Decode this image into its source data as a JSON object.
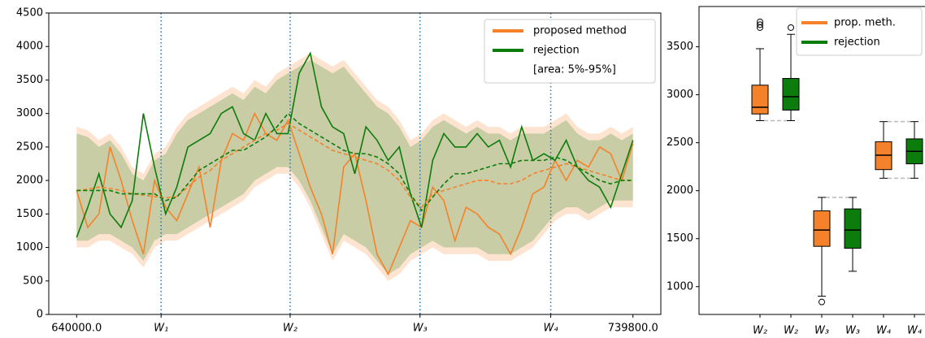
{
  "chart_data": [
    {
      "type": "line-band",
      "x": [
        640000,
        641996,
        643992,
        645988,
        647984,
        649980,
        651976,
        653972,
        655968,
        657964,
        659960,
        661956,
        663952,
        665948,
        667944,
        669940,
        671936,
        673932,
        675928,
        677924,
        679920,
        681916,
        683912,
        685908,
        687904,
        689900,
        691896,
        693892,
        695888,
        697884,
        699880,
        701876,
        703872,
        705868,
        707864,
        709860,
        711856,
        713852,
        715848,
        717844,
        719840,
        721836,
        723832,
        725828,
        727824,
        729820,
        731816,
        733812,
        735808,
        737804,
        739800
      ],
      "xlim": [
        635000,
        744800
      ],
      "xticks": [
        {
          "value": 640000,
          "label": "640000.0"
        },
        {
          "value": 655150,
          "label": "W₁"
        },
        {
          "value": 678300,
          "label": "W₂"
        },
        {
          "value": 701600,
          "label": "W₃"
        },
        {
          "value": 725050,
          "label": "W₄"
        },
        {
          "value": 739800,
          "label": "739800.0"
        }
      ],
      "vline_color": "#1f77b4",
      "ylim": [
        0,
        4500
      ],
      "yticks": [
        0,
        500,
        1000,
        1500,
        2000,
        2500,
        3000,
        3500,
        4000,
        4500
      ],
      "legend_note": "[area: 5%-95%]",
      "legend_position": "upper right",
      "series": [
        {
          "name": "proposed method",
          "color": "#f5822a",
          "values": [
            1850,
            1300,
            1500,
            2500,
            2000,
            1400,
            900,
            2000,
            1600,
            1400,
            1800,
            2200,
            1300,
            2300,
            2700,
            2600,
            3000,
            2700,
            2600,
            2900,
            2400,
            1900,
            1500,
            900,
            2200,
            2400,
            1700,
            900,
            600,
            1000,
            1400,
            1300,
            1900,
            1700,
            1100,
            1600,
            1500,
            1300,
            1200,
            900,
            1300,
            1800,
            1900,
            2300,
            2000,
            2300,
            2200,
            2500,
            2400,
            2000,
            2550
          ],
          "mean": [
            1850,
            1870,
            1900,
            1880,
            1850,
            1800,
            1780,
            1760,
            1740,
            1760,
            1900,
            2050,
            2150,
            2300,
            2400,
            2500,
            2600,
            2700,
            2750,
            2850,
            2750,
            2650,
            2550,
            2450,
            2400,
            2350,
            2300,
            2250,
            2150,
            2000,
            1750,
            1600,
            1800,
            1850,
            1900,
            1950,
            2000,
            2000,
            1950,
            1950,
            2000,
            2100,
            2150,
            2200,
            2250,
            2200,
            2150,
            2100,
            2050,
            2000,
            2000
          ],
          "upper": [
            2800,
            2750,
            2600,
            2700,
            2500,
            2200,
            2100,
            2400,
            2500,
            2800,
            3000,
            3100,
            3200,
            3300,
            3400,
            3300,
            3500,
            3400,
            3600,
            3700,
            3800,
            3900,
            3800,
            3700,
            3800,
            3600,
            3400,
            3200,
            3100,
            2900,
            2600,
            2700,
            2900,
            3000,
            2900,
            2800,
            2900,
            2800,
            2800,
            2700,
            2800,
            2800,
            2800,
            2900,
            3000,
            2800,
            2700,
            2700,
            2800,
            2700,
            2800
          ],
          "lower": [
            1000,
            1000,
            1100,
            1100,
            1000,
            900,
            700,
            1000,
            1100,
            1100,
            1200,
            1300,
            1400,
            1500,
            1600,
            1700,
            1900,
            2000,
            2100,
            2100,
            1900,
            1600,
            1200,
            800,
            1100,
            1000,
            900,
            700,
            500,
            600,
            800,
            900,
            1000,
            900,
            900,
            900,
            900,
            800,
            800,
            800,
            900,
            1000,
            1200,
            1400,
            1500,
            1500,
            1400,
            1500,
            1600,
            1600,
            1600
          ]
        },
        {
          "name": "rejection",
          "color": "#0c7c0c",
          "values": [
            1150,
            1600,
            2100,
            1500,
            1300,
            1700,
            3000,
            2200,
            1500,
            1900,
            2500,
            2600,
            2700,
            3000,
            3100,
            2700,
            2600,
            3000,
            2700,
            2700,
            3600,
            3900,
            3100,
            2800,
            2700,
            2100,
            2800,
            2600,
            2300,
            2500,
            1800,
            1300,
            2300,
            2700,
            2500,
            2500,
            2700,
            2500,
            2600,
            2200,
            2800,
            2300,
            2400,
            2300,
            2600,
            2200,
            2000,
            1900,
            1600,
            2100,
            2600
          ],
          "mean": [
            1850,
            1850,
            1850,
            1850,
            1800,
            1800,
            1800,
            1800,
            1700,
            1750,
            1950,
            2150,
            2250,
            2350,
            2450,
            2450,
            2550,
            2650,
            2800,
            3000,
            2850,
            2750,
            2650,
            2550,
            2450,
            2400,
            2400,
            2350,
            2250,
            2100,
            1800,
            1550,
            1750,
            1950,
            2100,
            2100,
            2150,
            2200,
            2250,
            2250,
            2300,
            2300,
            2300,
            2350,
            2300,
            2200,
            2100,
            2000,
            1950,
            2000,
            2000
          ],
          "upper": [
            2700,
            2650,
            2500,
            2600,
            2400,
            2100,
            2000,
            2300,
            2400,
            2700,
            2900,
            3000,
            3100,
            3200,
            3300,
            3200,
            3400,
            3300,
            3500,
            3600,
            3700,
            3800,
            3700,
            3600,
            3700,
            3500,
            3300,
            3100,
            3000,
            2800,
            2500,
            2600,
            2800,
            2900,
            2800,
            2700,
            2800,
            2700,
            2700,
            2600,
            2700,
            2700,
            2700,
            2800,
            2900,
            2700,
            2600,
            2600,
            2700,
            2600,
            2700
          ],
          "lower": [
            1100,
            1100,
            1200,
            1200,
            1100,
            1000,
            800,
            1100,
            1200,
            1200,
            1300,
            1400,
            1500,
            1600,
            1700,
            1800,
            2000,
            2100,
            2200,
            2200,
            2000,
            1700,
            1300,
            900,
            1200,
            1100,
            1000,
            800,
            600,
            700,
            900,
            1000,
            1100,
            1000,
            1000,
            1000,
            1000,
            900,
            900,
            900,
            1000,
            1100,
            1300,
            1500,
            1600,
            1600,
            1500,
            1600,
            1700,
            1700,
            1700
          ]
        }
      ]
    },
    {
      "type": "box",
      "ylim": [
        710,
        3920
      ],
      "yticks": [
        1000,
        1500,
        2000,
        2500,
        3000,
        3500
      ],
      "legend_position": "upper right",
      "legend": [
        {
          "name": "prop. meth.",
          "color": "#f5822a"
        },
        {
          "name": "rejection",
          "color": "#0c7c0c"
        }
      ],
      "boxes": [
        {
          "category": "W₂",
          "color": "#f5822a",
          "whislo": 2730,
          "q1": 2800,
          "med": 2870,
          "q3": 3100,
          "whishi": 3480,
          "fliers": [
            3700,
            3730,
            3760
          ]
        },
        {
          "category": "W₂",
          "color": "#0c7c0c",
          "whislo": 2730,
          "q1": 2840,
          "med": 2980,
          "q3": 3170,
          "whishi": 3630,
          "fliers": [
            3700
          ]
        },
        {
          "category": "W₃",
          "color": "#f5822a",
          "whislo": 900,
          "q1": 1420,
          "med": 1590,
          "q3": 1790,
          "whishi": 1930,
          "fliers": [
            840
          ]
        },
        {
          "category": "W₃",
          "color": "#0c7c0c",
          "whislo": 1160,
          "q1": 1400,
          "med": 1590,
          "q3": 1810,
          "whishi": 1930,
          "fliers": []
        },
        {
          "category": "W₄",
          "color": "#f5822a",
          "whislo": 2130,
          "q1": 2220,
          "med": 2370,
          "q3": 2510,
          "whishi": 2720,
          "fliers": []
        },
        {
          "category": "W₄",
          "color": "#0c7c0c",
          "whislo": 2130,
          "q1": 2280,
          "med": 2410,
          "q3": 2540,
          "whishi": 2720,
          "fliers": []
        }
      ]
    }
  ]
}
